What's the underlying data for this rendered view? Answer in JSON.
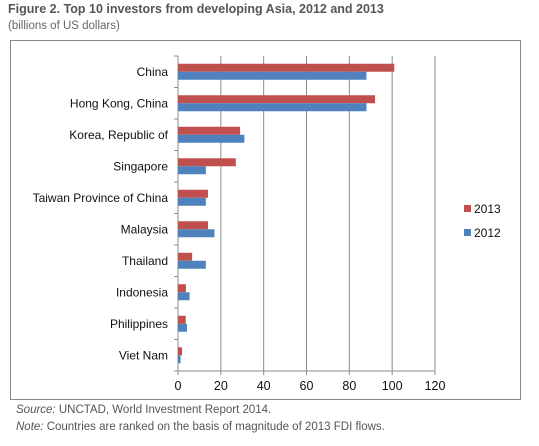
{
  "figure": {
    "title": "Figure 2. Top 10 investors from developing Asia, 2012 and 2013",
    "subtitle": "(billions of US dollars)"
  },
  "footnotes": {
    "source_label": "Source:",
    "source_text": " UNCTAD, World Investment Report 2014.",
    "note_label": "Note:",
    "note_text": " Countries are ranked on the basis of magnitude of 2013 FDI flows."
  },
  "chart_data": {
    "type": "bar",
    "orientation": "horizontal",
    "title": "",
    "xlabel": "",
    "ylabel": "",
    "categories": [
      "China",
      "Hong Kong, China",
      "Korea, Republic of",
      "Singapore",
      "Taiwan Province of China",
      "Malaysia",
      "Thailand",
      "Indonesia",
      "Philippines",
      "Viet Nam"
    ],
    "series": [
      {
        "name": "2013",
        "color": "#c0504d",
        "values": [
          101,
          92,
          29,
          27,
          14,
          14,
          6.6,
          3.7,
          3.6,
          1.9
        ]
      },
      {
        "name": "2012",
        "color": "#4f81bd",
        "values": [
          88,
          88,
          31,
          13,
          13,
          17,
          13,
          5.4,
          4.2,
          1.2
        ]
      }
    ],
    "xlim": [
      0,
      120
    ],
    "xticks": [
      0,
      20,
      40,
      60,
      80,
      100,
      120
    ],
    "grid": "vertical",
    "legend_position": "right",
    "legend_order": [
      "2013",
      "2012"
    ]
  }
}
